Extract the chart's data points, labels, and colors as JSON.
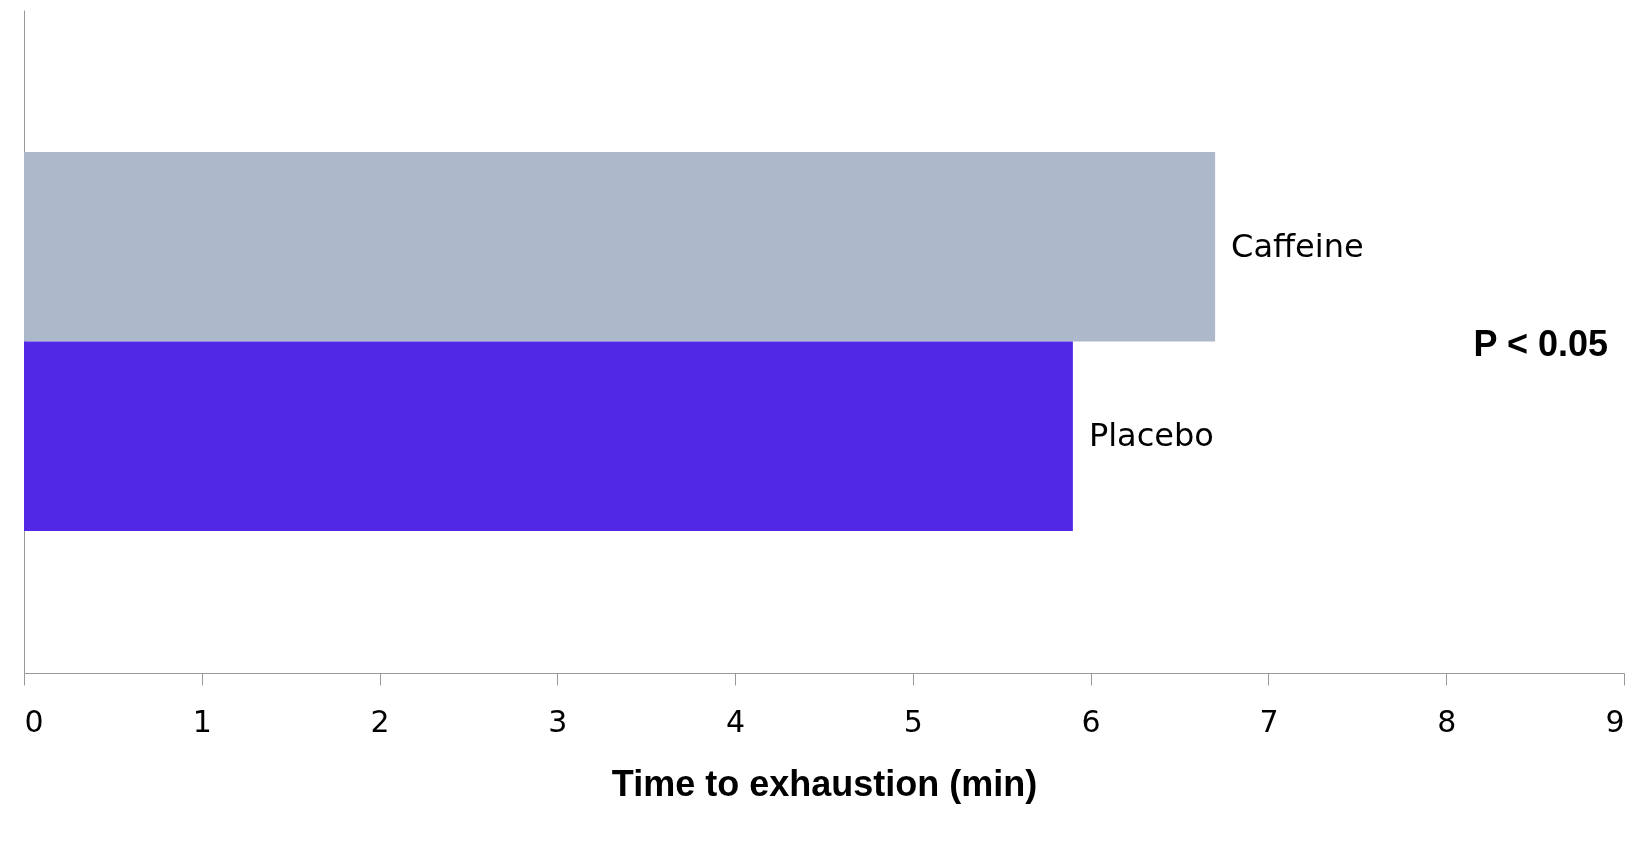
{
  "chart_data": {
    "type": "bar",
    "orientation": "horizontal",
    "xlabel": "Time to exhaustion  (min)",
    "categories": [
      "Caffeine",
      "Placebo"
    ],
    "values": [
      6.7,
      5.9
    ],
    "colors": [
      "#adb9cb",
      "#5028e6"
    ],
    "xlim": [
      0,
      9
    ],
    "xticks": [
      0,
      1,
      2,
      3,
      4,
      5,
      6,
      7,
      8,
      9
    ],
    "grid": false,
    "annotations": [
      "P < 0.05"
    ]
  }
}
